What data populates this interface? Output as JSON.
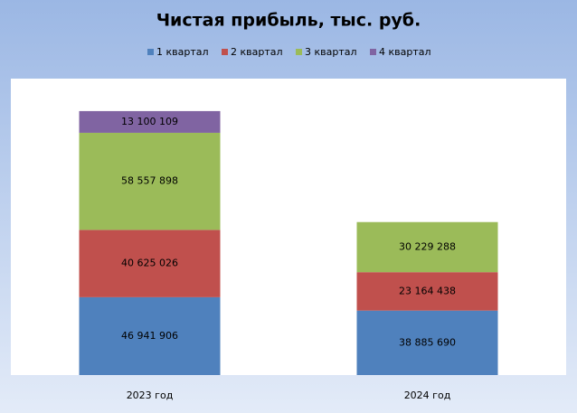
{
  "chart_data": {
    "type": "stacked_bar",
    "title": "Чистая прибыль, тыс. руб.",
    "categories": [
      "2023 год",
      "2024 год"
    ],
    "series": [
      {
        "name": "1 квартал",
        "color": "#4f81bd",
        "values": [
          46941906,
          38885690
        ],
        "value_labels": [
          "46 941 906",
          "38 885 690"
        ]
      },
      {
        "name": "2 квартал",
        "color": "#c0504d",
        "values": [
          40625026,
          23164438
        ],
        "value_labels": [
          "40 625 026",
          "23 164 438"
        ]
      },
      {
        "name": "3 квартал",
        "color": "#9bbb59",
        "values": [
          58557898,
          30229288
        ],
        "value_labels": [
          "58 557 898",
          "30 229 288"
        ]
      },
      {
        "name": "4 квартал",
        "color": "#8064a2",
        "values": [
          13100109,
          null
        ],
        "value_labels": [
          "13 100 109",
          null
        ]
      }
    ],
    "legend": "top"
  }
}
